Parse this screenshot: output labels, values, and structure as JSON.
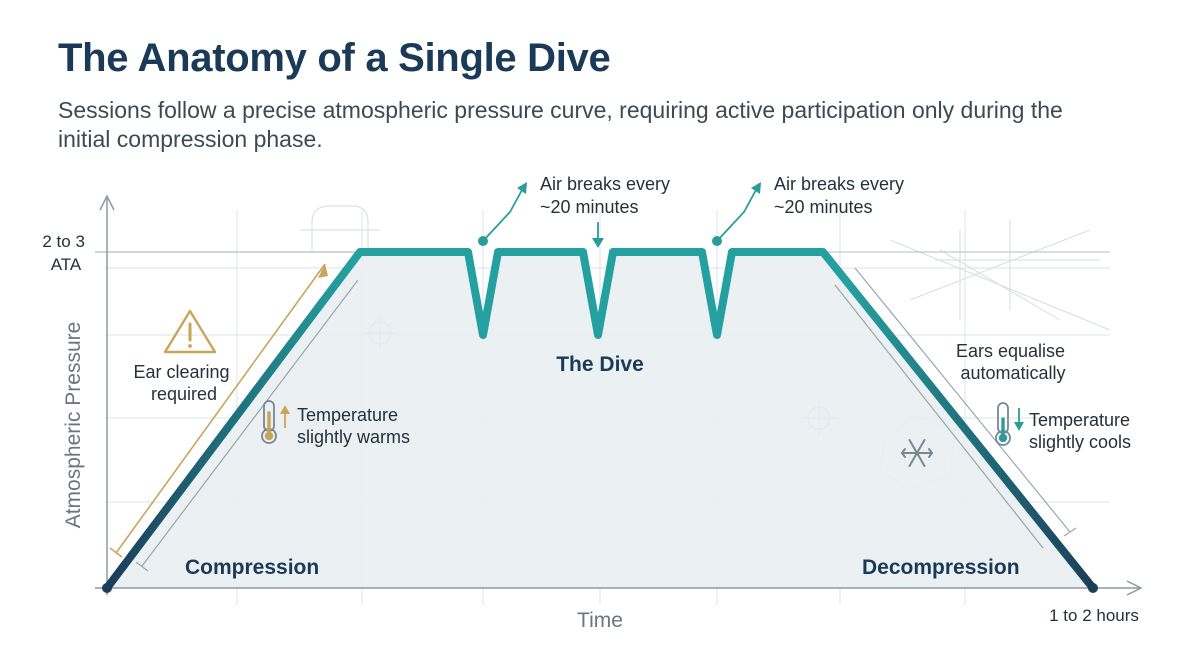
{
  "title": "The Anatomy of a Single Dive",
  "subtitle": "Sessions follow a precise atmospheric pressure curve, requiring active participation only during the initial compression phase.",
  "axes": {
    "y_label": "Atmospheric Pressure",
    "x_label": "Time",
    "y_tick_line1": "2 to 3",
    "y_tick_line2": "ATA",
    "x_end": "1 to 2 hours"
  },
  "phases": {
    "compression": "Compression",
    "dive": "The Dive",
    "decompression": "Decompression"
  },
  "annotations": {
    "ear_clearing_1": "Ear clearing",
    "ear_clearing_2": "required",
    "warm_1": "Temperature",
    "warm_2": "slightly warms",
    "air_break_1_line1": "Air breaks every",
    "air_break_1_line2": "~20 minutes",
    "air_break_2_line1": "Air breaks every",
    "air_break_2_line2": "~20 minutes",
    "ears_equalise_1": "Ears equalise",
    "ears_equalise_2": "automatically",
    "cool_1": "Temperature",
    "cool_2": "slightly cools"
  },
  "icons": {
    "warning": "warning-triangle-icon",
    "warm": "thermometer-warm-icon",
    "cool": "thermometer-cool-icon",
    "snow": "snowflake-icon"
  },
  "colors": {
    "curve_start": "#1c3d5a",
    "curve_peak": "#24a0a0",
    "title": "#1b3a57",
    "warning": "#c9a55c",
    "teal": "#2a9d9a"
  }
}
